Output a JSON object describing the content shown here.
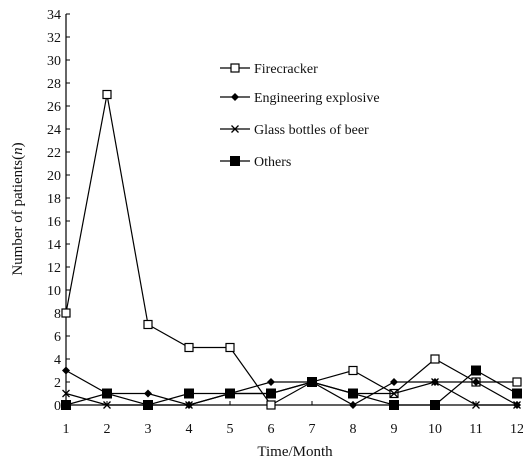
{
  "chart_data": {
    "type": "line",
    "title": "",
    "xlabel": "Time/Month",
    "ylabel_main": "Number of patients",
    "ylabel_paren_open": "(",
    "ylabel_var": "n",
    "ylabel_paren_close": ")",
    "x": [
      1,
      2,
      3,
      4,
      5,
      6,
      7,
      8,
      9,
      10,
      11,
      12
    ],
    "xlim": [
      1,
      12
    ],
    "ylim": [
      0,
      34
    ],
    "yticks": [
      0,
      2,
      4,
      6,
      8,
      10,
      12,
      14,
      16,
      18,
      20,
      22,
      24,
      26,
      28,
      30,
      32,
      34
    ],
    "grid": false,
    "legend_position": "top-right",
    "series": [
      {
        "name": "Firecracker",
        "marker": "open-square",
        "values": [
          8,
          27,
          7,
          5,
          5,
          0,
          2,
          3,
          1,
          4,
          2,
          2
        ]
      },
      {
        "name": "Engineering explosive",
        "marker": "diamond",
        "values": [
          3,
          1,
          1,
          0,
          1,
          2,
          2,
          0,
          2,
          2,
          2,
          0
        ]
      },
      {
        "name": "Glass bottles of beer",
        "marker": "cross",
        "values": [
          1,
          0,
          0,
          0,
          1,
          1,
          2,
          1,
          1,
          2,
          0,
          0
        ]
      },
      {
        "name": "Others",
        "marker": "filled-square",
        "values": [
          0,
          1,
          0,
          1,
          1,
          1,
          2,
          1,
          0,
          0,
          3,
          1
        ]
      }
    ]
  }
}
